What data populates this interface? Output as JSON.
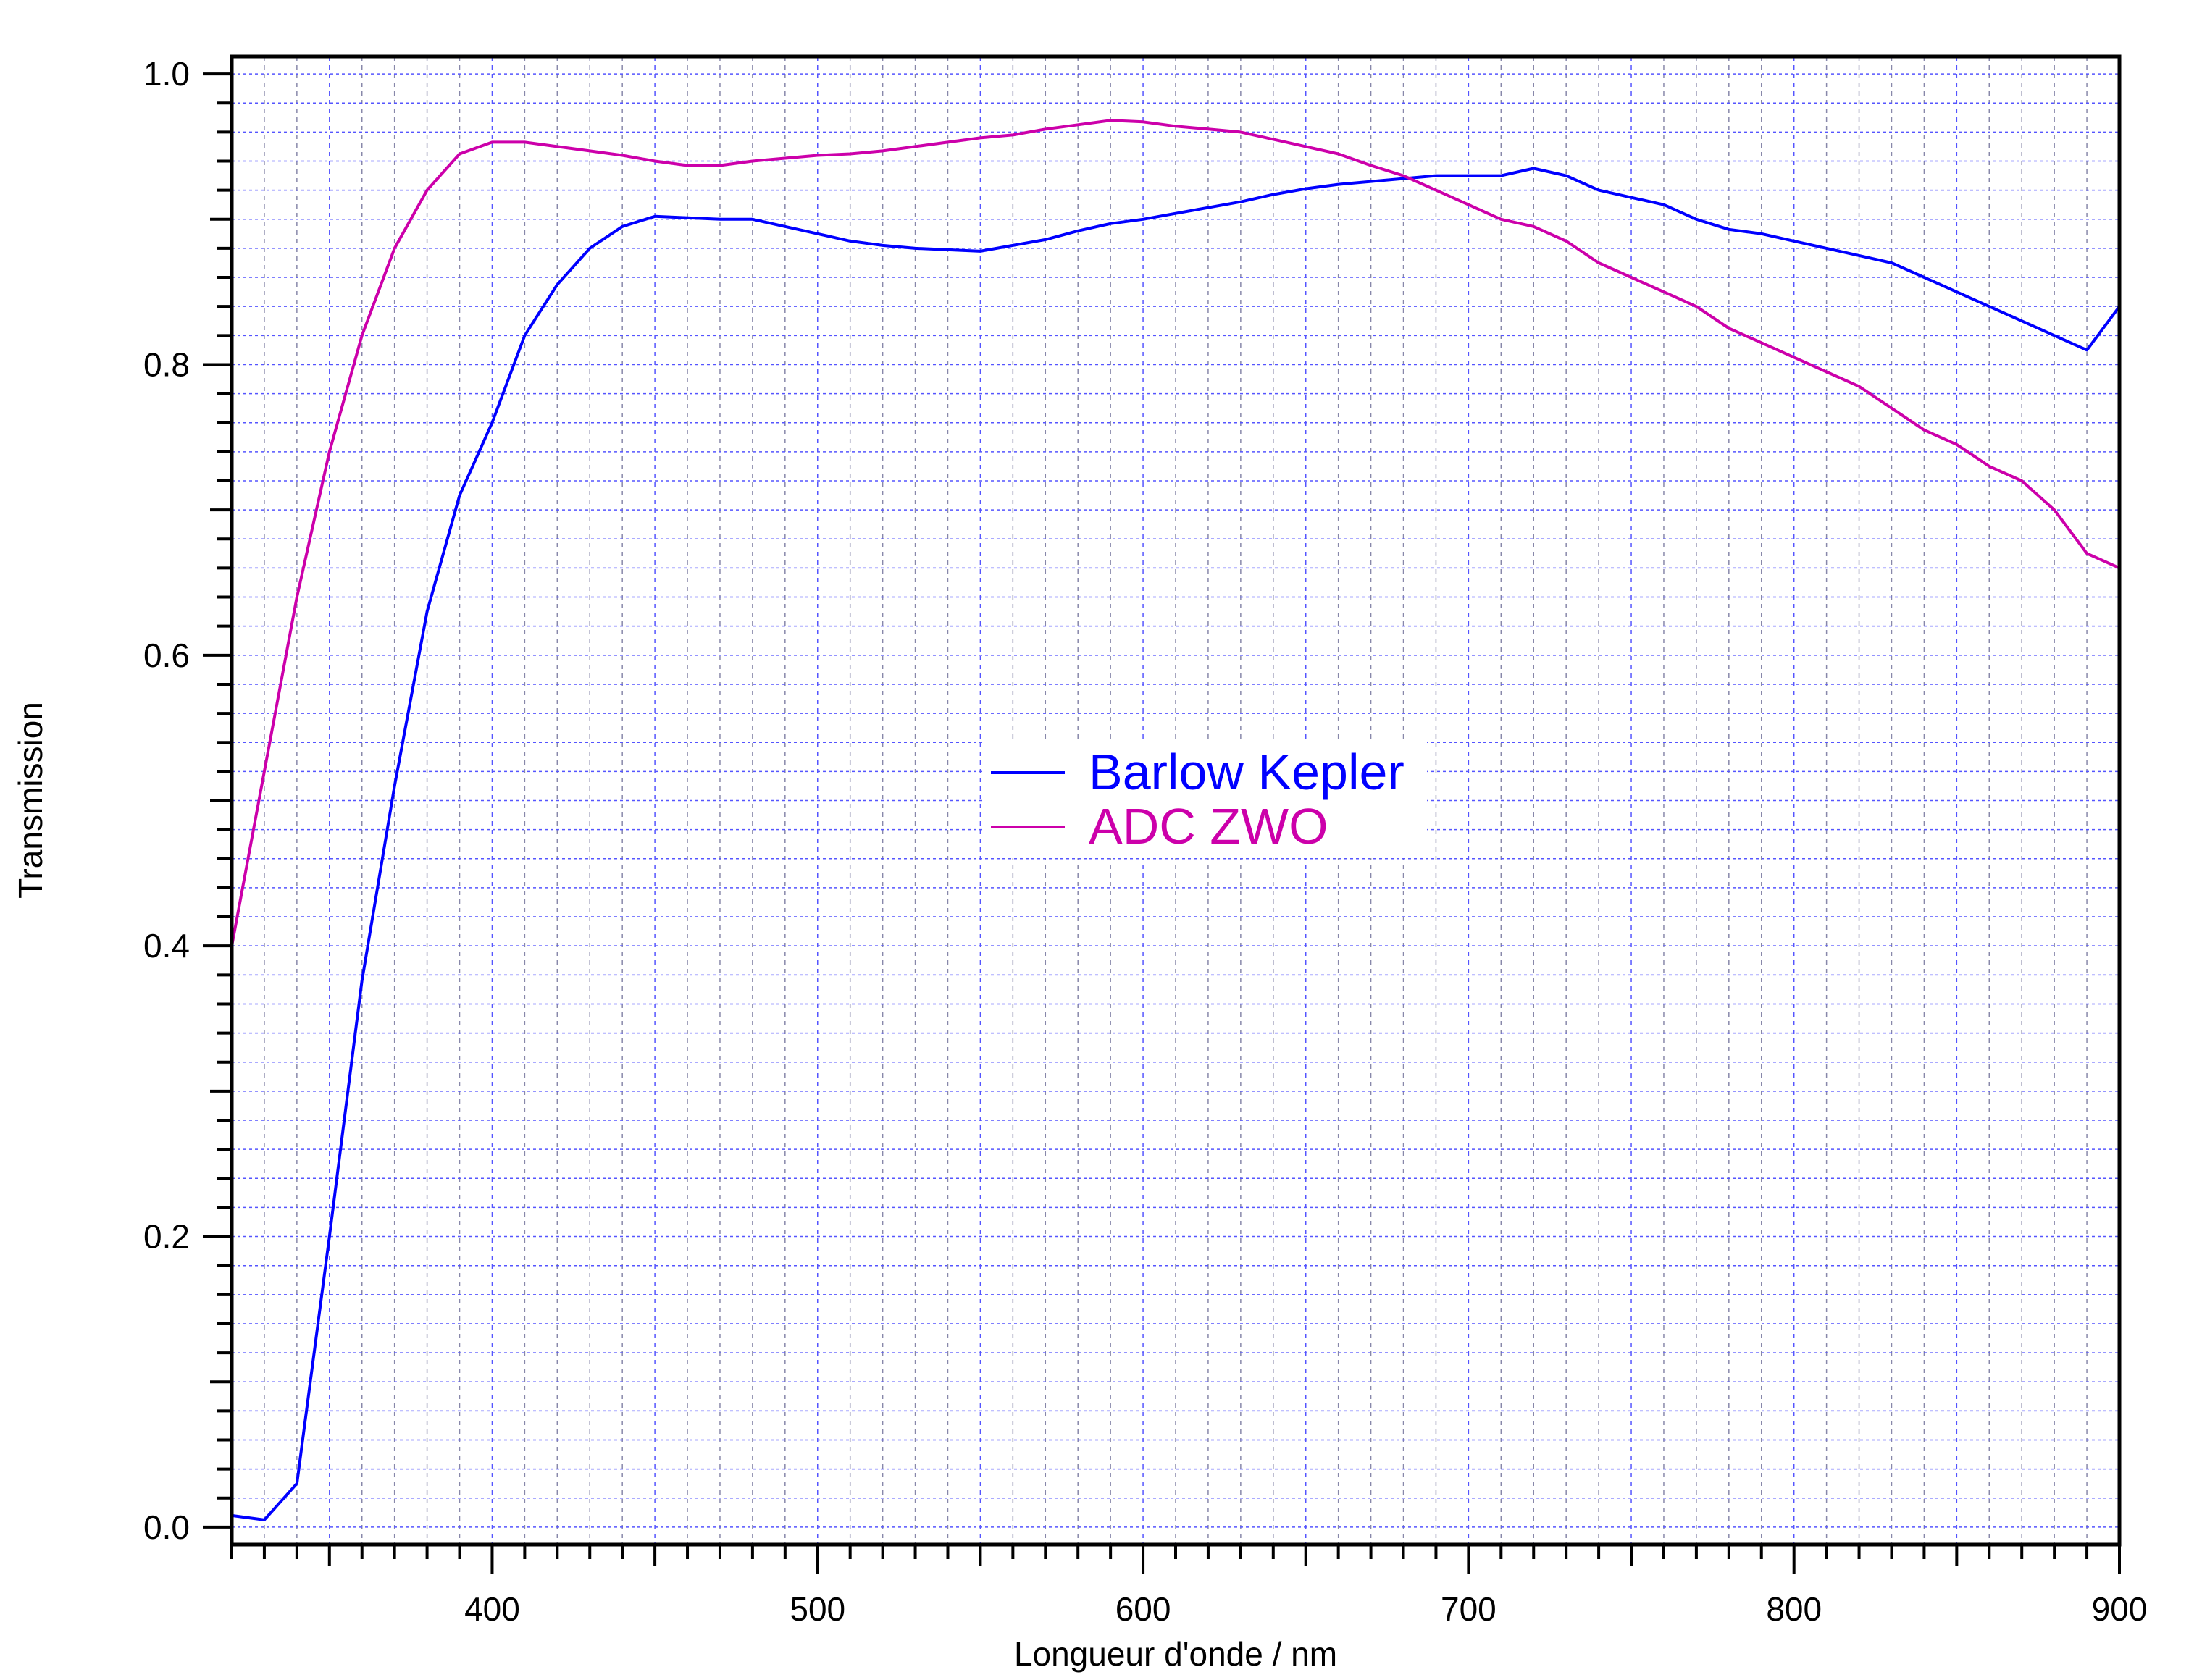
{
  "chart_data": {
    "type": "line",
    "title": "",
    "xlabel": "Longueur d'onde / nm",
    "ylabel": "Transmission",
    "xlim": [
      320,
      900
    ],
    "ylim": [
      -0.012,
      1.012
    ],
    "xticks": [
      400,
      500,
      600,
      700,
      800,
      900
    ],
    "xtick_labels": [
      "400",
      "500",
      "600",
      "700",
      "800",
      "900"
    ],
    "yticks": [
      0.0,
      0.2,
      0.4,
      0.6,
      0.8,
      1.0
    ],
    "ytick_labels": [
      "0.0",
      "0.2",
      "0.4",
      "0.6",
      "0.8",
      "1.0"
    ],
    "grid": true,
    "legend_position": "center",
    "x": [
      320,
      330,
      340,
      350,
      360,
      370,
      380,
      390,
      400,
      410,
      420,
      430,
      440,
      450,
      460,
      470,
      480,
      490,
      500,
      510,
      520,
      530,
      540,
      550,
      560,
      570,
      580,
      590,
      600,
      610,
      620,
      630,
      640,
      650,
      660,
      670,
      680,
      690,
      700,
      710,
      720,
      730,
      740,
      750,
      760,
      770,
      780,
      790,
      800,
      810,
      820,
      830,
      840,
      850,
      860,
      870,
      880,
      890,
      900
    ],
    "series": [
      {
        "name": "Barlow Kepler",
        "color": "#0000ff",
        "values": [
          0.008,
          0.005,
          0.03,
          0.2,
          0.376,
          0.51,
          0.63,
          0.71,
          0.76,
          0.82,
          0.855,
          0.88,
          0.895,
          0.902,
          0.901,
          0.9,
          0.9,
          0.895,
          0.89,
          0.885,
          0.882,
          0.88,
          0.879,
          0.878,
          0.882,
          0.886,
          0.892,
          0.897,
          0.9,
          0.904,
          0.908,
          0.912,
          0.917,
          0.921,
          0.924,
          0.926,
          0.928,
          0.93,
          0.93,
          0.93,
          0.935,
          0.93,
          0.92,
          0.915,
          0.91,
          0.9,
          0.893,
          0.89,
          0.885,
          0.88,
          0.875,
          0.87,
          0.86,
          0.85,
          0.84,
          0.83,
          0.82,
          0.81,
          0.84
        ]
      },
      {
        "name": "ADC ZWO",
        "color": "#cc00aa",
        "values": [
          0.4,
          0.52,
          0.64,
          0.74,
          0.82,
          0.88,
          0.92,
          0.945,
          0.953,
          0.953,
          0.95,
          0.947,
          0.944,
          0.94,
          0.937,
          0.937,
          0.94,
          0.942,
          0.944,
          0.945,
          0.947,
          0.95,
          0.953,
          0.956,
          0.958,
          0.962,
          0.965,
          0.968,
          0.967,
          0.964,
          0.962,
          0.96,
          0.955,
          0.95,
          0.945,
          0.937,
          0.93,
          0.92,
          0.91,
          0.9,
          0.895,
          0.885,
          0.87,
          0.86,
          0.85,
          0.84,
          0.825,
          0.815,
          0.805,
          0.795,
          0.785,
          0.77,
          0.755,
          0.745,
          0.73,
          0.72,
          0.7,
          0.67,
          0.66
        ]
      }
    ]
  }
}
